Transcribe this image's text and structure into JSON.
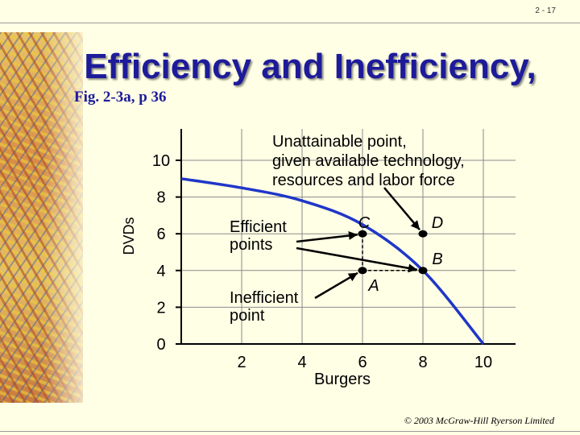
{
  "slide": {
    "number": "2 - 17",
    "title": "Efficiency and Inefficiency,",
    "subtitle": "Fig. 2-3a, p 36",
    "footer": "© 2003 McGraw-Hill Ryerson Limited"
  },
  "colors": {
    "title": "#1d1b9a",
    "curve": "#1f36c8",
    "grid": "#8a8a8a",
    "background": "#ffffe6"
  },
  "chart_data": {
    "type": "line",
    "title": "",
    "xlabel": "Burgers",
    "ylabel": "DVDs",
    "xlim": [
      0,
      10
    ],
    "ylim": [
      0,
      10
    ],
    "xticks": [
      2,
      4,
      6,
      8,
      10
    ],
    "yticks": [
      0,
      2,
      4,
      6,
      8,
      10
    ],
    "grid": true,
    "series": [
      {
        "name": "",
        "x": [
          0,
          2,
          4,
          6,
          8,
          10
        ],
        "y": [
          9,
          8.5,
          7.8,
          6.5,
          4,
          0
        ]
      }
    ],
    "points": [
      {
        "label": "C",
        "x": 6,
        "y": 6
      },
      {
        "label": "D",
        "x": 8,
        "y": 6
      },
      {
        "label": "A",
        "x": 6,
        "y": 4
      },
      {
        "label": "B",
        "x": 8,
        "y": 4
      }
    ],
    "annotations": [
      {
        "text": [
          "Unattainable point,",
          "given available technology,",
          "resources and labor force"
        ],
        "target": "D"
      },
      {
        "text": [
          "Efficient",
          "points"
        ],
        "targets": [
          "C",
          "B"
        ]
      },
      {
        "text": [
          "Inefficient",
          "point"
        ],
        "target": "A"
      }
    ]
  }
}
